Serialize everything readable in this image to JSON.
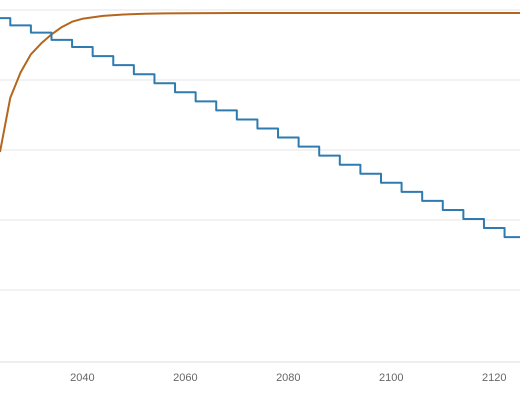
{
  "chart_data": {
    "type": "line",
    "x": [
      2040,
      2060,
      2080,
      2100,
      2120
    ],
    "xlim": [
      2024,
      2125
    ],
    "ylim": [
      0,
      100
    ],
    "grid": true,
    "series": [
      {
        "color": "#b5651d",
        "step": false,
        "points": [
          [
            2024,
            58
          ],
          [
            2026,
            73
          ],
          [
            2028,
            80
          ],
          [
            2030,
            85
          ],
          [
            2032,
            88
          ],
          [
            2034,
            90.5
          ],
          [
            2036,
            92.5
          ],
          [
            2038,
            94
          ],
          [
            2040,
            94.8
          ],
          [
            2044,
            95.6
          ],
          [
            2048,
            96
          ],
          [
            2052,
            96.2
          ],
          [
            2056,
            96.3
          ],
          [
            2060,
            96.35
          ],
          [
            2070,
            96.4
          ],
          [
            2080,
            96.4
          ],
          [
            2090,
            96.4
          ],
          [
            2100,
            96.4
          ],
          [
            2110,
            96.4
          ],
          [
            2125,
            96.4
          ]
        ]
      },
      {
        "color": "#2e7bb0",
        "step": true,
        "points": [
          [
            2024,
            95
          ],
          [
            2026,
            93
          ],
          [
            2030,
            91
          ],
          [
            2034,
            89
          ],
          [
            2038,
            87
          ],
          [
            2042,
            84.5
          ],
          [
            2046,
            82
          ],
          [
            2050,
            79.5
          ],
          [
            2054,
            77
          ],
          [
            2058,
            74.5
          ],
          [
            2062,
            72
          ],
          [
            2066,
            69.5
          ],
          [
            2070,
            67
          ],
          [
            2074,
            64.5
          ],
          [
            2078,
            62
          ],
          [
            2082,
            59.5
          ],
          [
            2086,
            57
          ],
          [
            2090,
            54.5
          ],
          [
            2094,
            52
          ],
          [
            2098,
            49.5
          ],
          [
            2102,
            47
          ],
          [
            2106,
            44.5
          ],
          [
            2110,
            42
          ],
          [
            2114,
            39.5
          ],
          [
            2118,
            37
          ],
          [
            2122,
            34.5
          ],
          [
            2125,
            34.5
          ]
        ]
      }
    ]
  }
}
